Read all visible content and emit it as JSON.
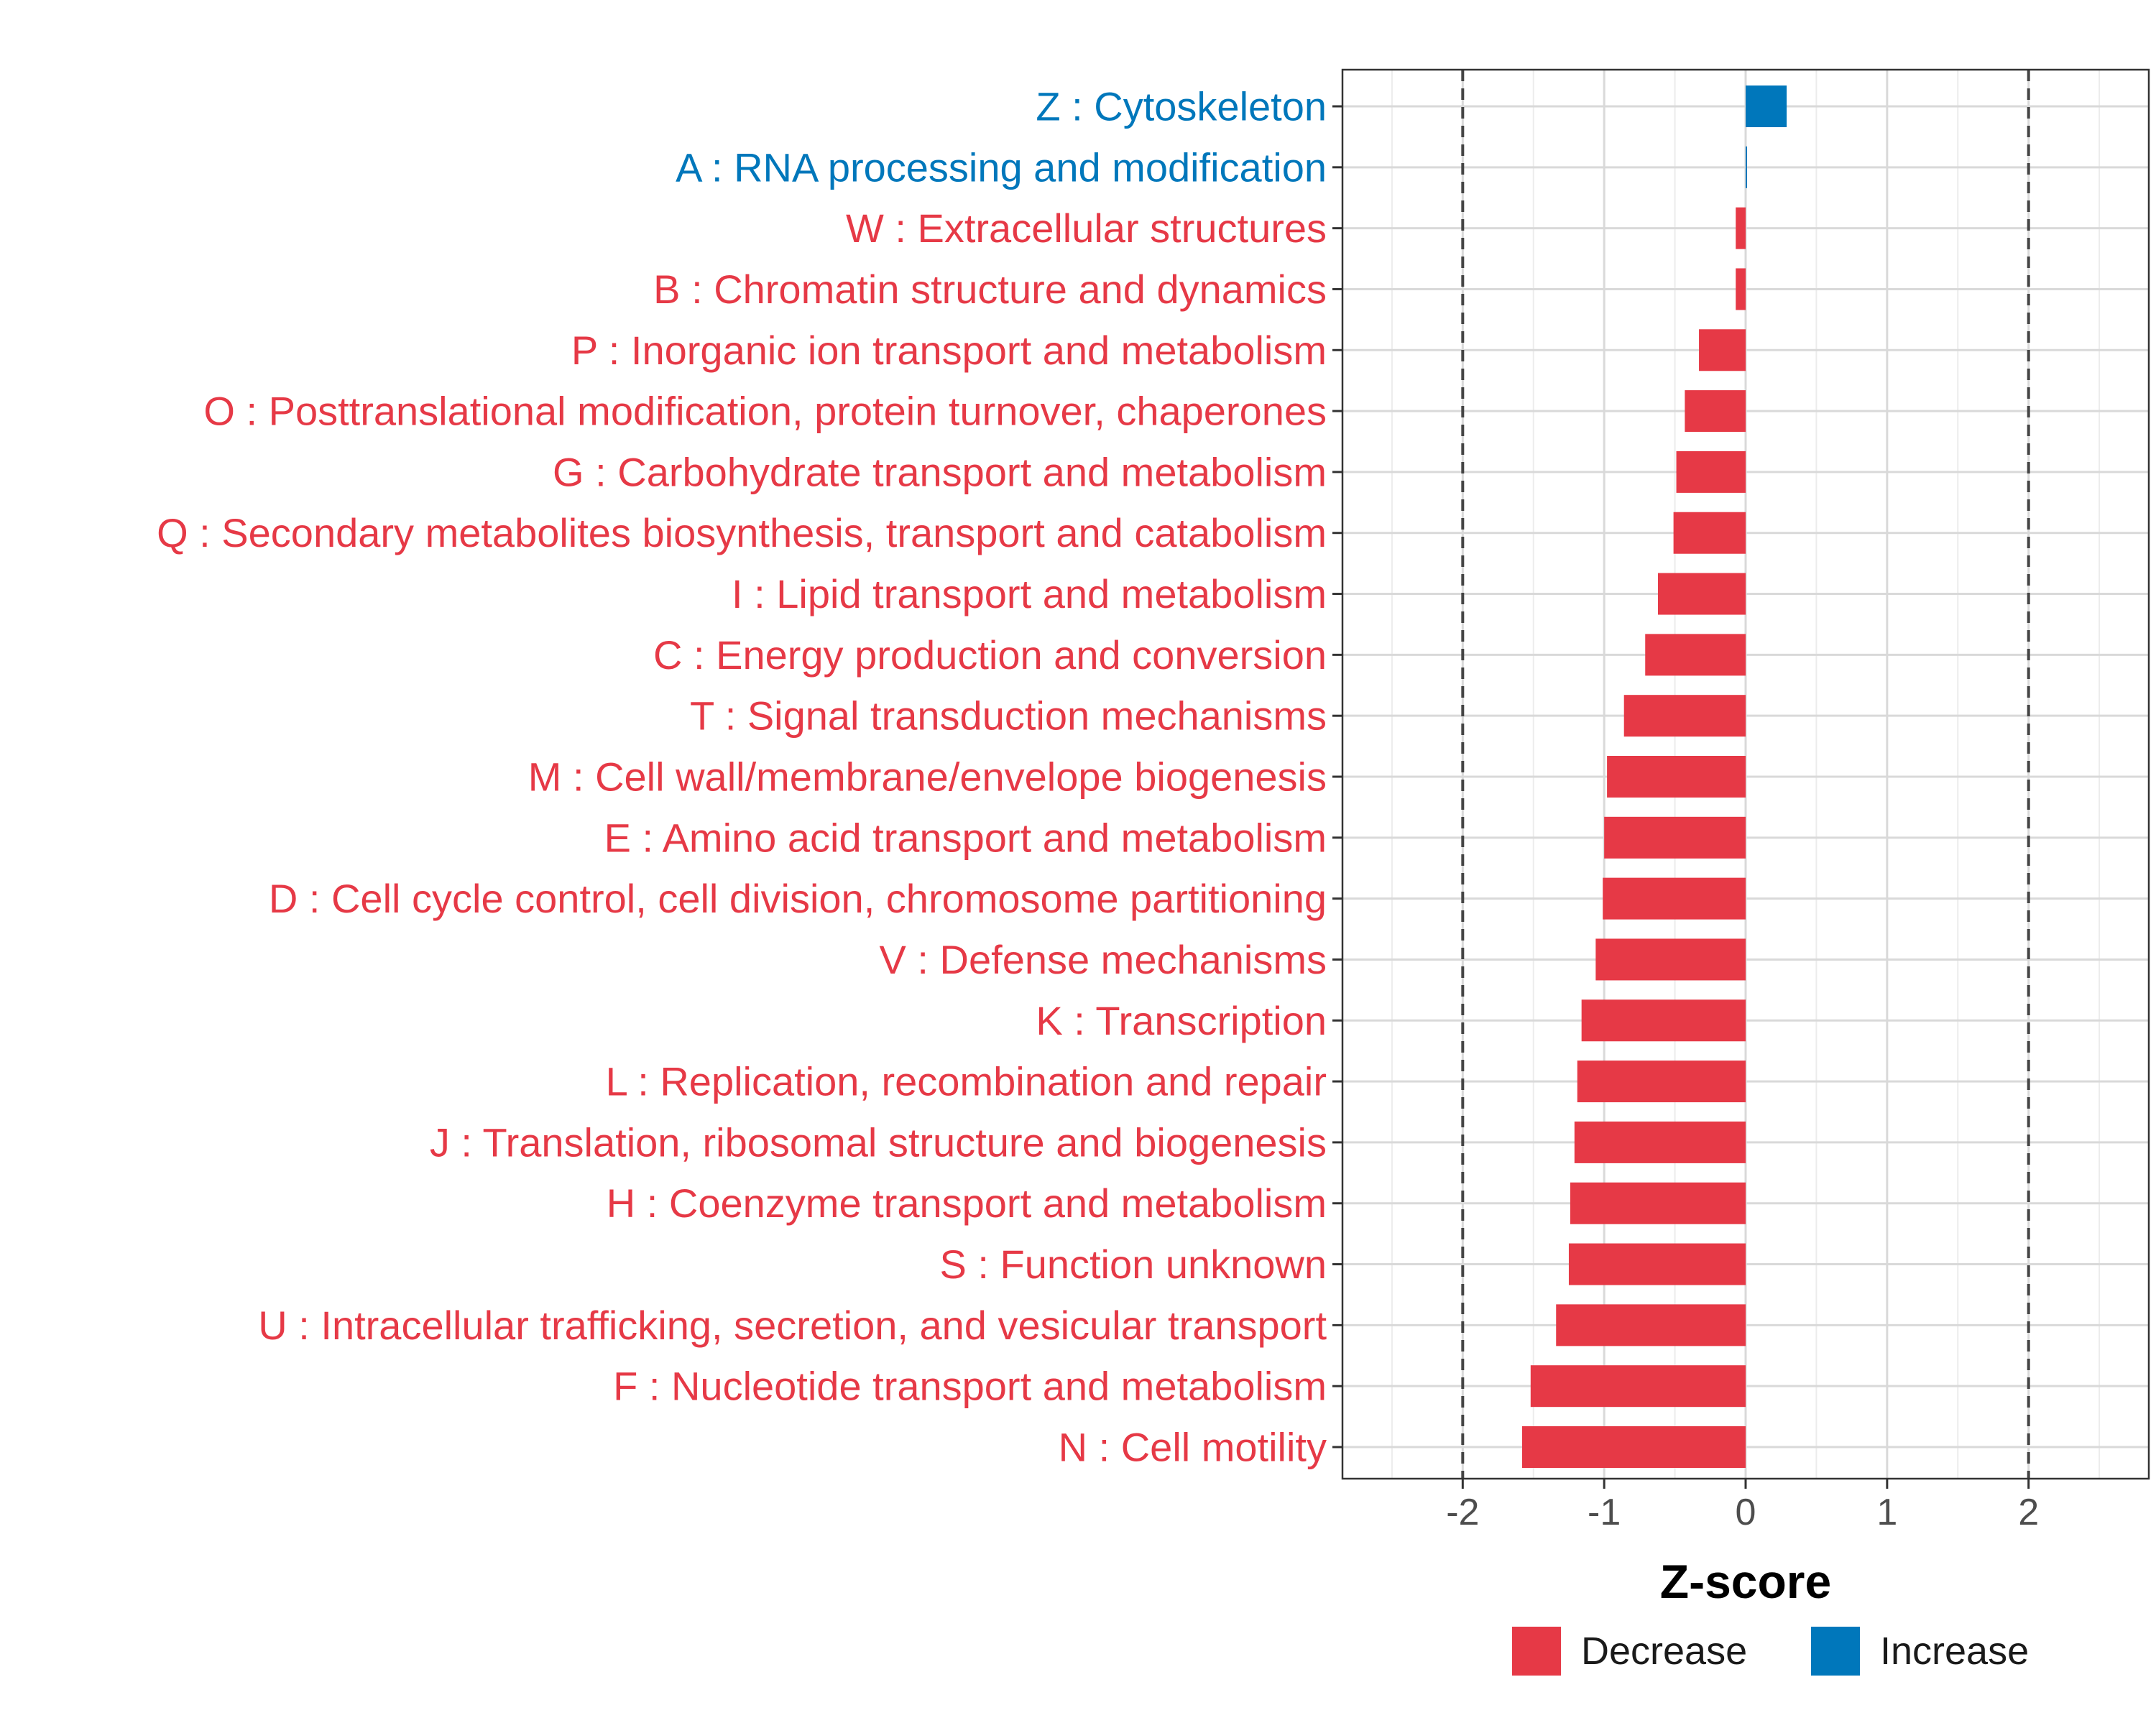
{
  "chart_data": {
    "type": "bar",
    "orientation": "horizontal",
    "title": "",
    "xlabel": "Z-score",
    "ylabel": "",
    "xlim": [
      -2.85,
      2.85
    ],
    "xticks": [
      -2,
      -1,
      0,
      1,
      2
    ],
    "xtick_labels": [
      "-2",
      "-1",
      "0",
      "1",
      "2"
    ],
    "reference_lines": [
      -2,
      2
    ],
    "grid": true,
    "legend_position": "bottom",
    "colors": {
      "Decrease": "#e63946",
      "Increase": "#0077bb"
    },
    "legend": [
      {
        "key": "Decrease",
        "label": "Decrease"
      },
      {
        "key": "Increase",
        "label": "Increase"
      }
    ],
    "categories": [
      {
        "label": "Z : Cytoskeleton",
        "value": 0.29,
        "direction": "Increase"
      },
      {
        "label": "A : RNA processing and modification",
        "value": 0.01,
        "direction": "Increase"
      },
      {
        "label": "W : Extracellular structures",
        "value": -0.07,
        "direction": "Decrease"
      },
      {
        "label": "B : Chromatin structure and dynamics",
        "value": -0.07,
        "direction": "Decrease"
      },
      {
        "label": "P : Inorganic ion transport and metabolism",
        "value": -0.33,
        "direction": "Decrease"
      },
      {
        "label": "O : Posttranslational modification, protein turnover, chaperones",
        "value": -0.43,
        "direction": "Decrease"
      },
      {
        "label": "G : Carbohydrate transport and metabolism",
        "value": -0.49,
        "direction": "Decrease"
      },
      {
        "label": "Q : Secondary metabolites biosynthesis, transport and catabolism",
        "value": -0.51,
        "direction": "Decrease"
      },
      {
        "label": "I : Lipid transport and metabolism",
        "value": -0.62,
        "direction": "Decrease"
      },
      {
        "label": "C : Energy production and conversion",
        "value": -0.71,
        "direction": "Decrease"
      },
      {
        "label": "T : Signal transduction mechanisms",
        "value": -0.86,
        "direction": "Decrease"
      },
      {
        "label": "M : Cell wall/membrane/envelope biogenesis",
        "value": -0.98,
        "direction": "Decrease"
      },
      {
        "label": "E : Amino acid transport and metabolism",
        "value": -1.0,
        "direction": "Decrease"
      },
      {
        "label": "D : Cell cycle control, cell division, chromosome partitioning",
        "value": -1.01,
        "direction": "Decrease"
      },
      {
        "label": "V : Defense mechanisms",
        "value": -1.06,
        "direction": "Decrease"
      },
      {
        "label": "K : Transcription",
        "value": -1.16,
        "direction": "Decrease"
      },
      {
        "label": "L : Replication, recombination and repair",
        "value": -1.19,
        "direction": "Decrease"
      },
      {
        "label": "J : Translation, ribosomal structure and biogenesis",
        "value": -1.21,
        "direction": "Decrease"
      },
      {
        "label": "H : Coenzyme transport and metabolism",
        "value": -1.24,
        "direction": "Decrease"
      },
      {
        "label": "S : Function unknown",
        "value": -1.25,
        "direction": "Decrease"
      },
      {
        "label": "U : Intracellular trafficking, secretion, and vesicular transport",
        "value": -1.34,
        "direction": "Decrease"
      },
      {
        "label": "F : Nucleotide transport and metabolism",
        "value": -1.52,
        "direction": "Decrease"
      },
      {
        "label": "N : Cell motility",
        "value": -1.58,
        "direction": "Decrease"
      }
    ]
  }
}
